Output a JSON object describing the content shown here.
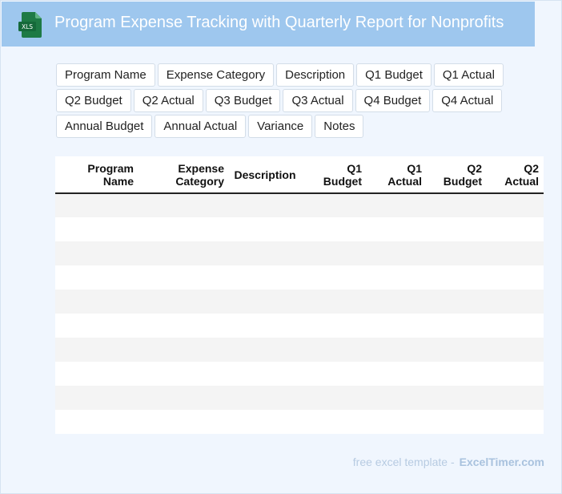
{
  "header": {
    "title": "Program Expense Tracking with Quarterly Report for Nonprofits",
    "icon": "xls-file-icon",
    "icon_text": "XLS",
    "colors": {
      "bar": "#9ec7ee",
      "icon": "#1e7a45"
    }
  },
  "chips": [
    "Program Name",
    "Expense Category",
    "Description",
    "Q1 Budget",
    "Q1 Actual",
    "Q2 Budget",
    "Q2 Actual",
    "Q3 Budget",
    "Q3 Actual",
    "Q4 Budget",
    "Q4 Actual",
    "Annual Budget",
    "Annual Actual",
    "Variance",
    "Notes"
  ],
  "table": {
    "columns": [
      [
        "Program",
        "Name"
      ],
      [
        "Expense",
        "Category"
      ],
      [
        "Description"
      ],
      [
        "Q1",
        "Budget"
      ],
      [
        "Q1",
        "Actual"
      ],
      [
        "Q2",
        "Budget"
      ],
      [
        "Q2",
        "Actual"
      ]
    ],
    "rows": [
      [],
      [],
      [],
      [],
      [],
      [],
      [],
      [],
      [],
      []
    ]
  },
  "footer": {
    "label": "free excel template -",
    "brand": "ExcelTimer.com"
  }
}
